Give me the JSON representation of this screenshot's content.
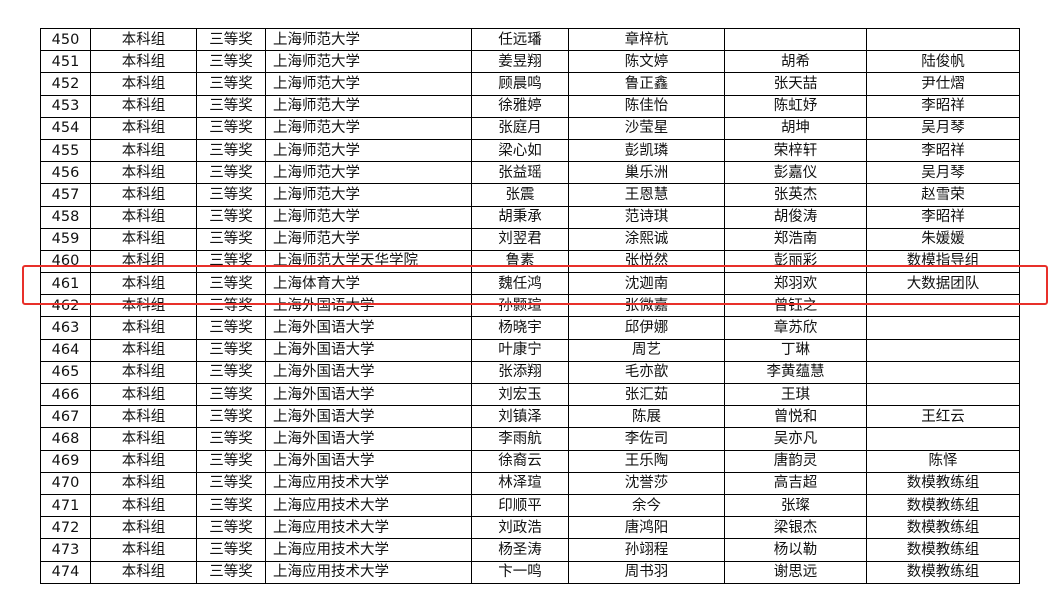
{
  "rows": [
    [
      "450",
      "本科组",
      "三等奖",
      "上海师范大学",
      "任远璠",
      "章梓杭",
      "",
      ""
    ],
    [
      "451",
      "本科组",
      "三等奖",
      "上海师范大学",
      "姜昱翔",
      "陈文婷",
      "胡希",
      "陆俊帆"
    ],
    [
      "452",
      "本科组",
      "三等奖",
      "上海师范大学",
      "顾晨鸣",
      "鲁正鑫",
      "张天喆",
      "尹仕熠"
    ],
    [
      "453",
      "本科组",
      "三等奖",
      "上海师范大学",
      "徐雅婷",
      "陈佳怡",
      "陈虹妤",
      "李昭祥"
    ],
    [
      "454",
      "本科组",
      "三等奖",
      "上海师范大学",
      "张庭月",
      "沙莹星",
      "胡坤",
      "吴月琴"
    ],
    [
      "455",
      "本科组",
      "三等奖",
      "上海师范大学",
      "梁心如",
      "彭凯璘",
      "荣梓轩",
      "李昭祥"
    ],
    [
      "456",
      "本科组",
      "三等奖",
      "上海师范大学",
      "张益瑶",
      "巢乐洲",
      "彭嘉仪",
      "吴月琴"
    ],
    [
      "457",
      "本科组",
      "三等奖",
      "上海师范大学",
      "张震",
      "王恩慧",
      "张英杰",
      "赵雪荣"
    ],
    [
      "458",
      "本科组",
      "三等奖",
      "上海师范大学",
      "胡秉承",
      "范诗琪",
      "胡俊涛",
      "李昭祥"
    ],
    [
      "459",
      "本科组",
      "三等奖",
      "上海师范大学",
      "刘翌君",
      "涂熙诚",
      "郑浩南",
      "朱媛媛"
    ],
    [
      "460",
      "本科组",
      "三等奖",
      "上海师范大学天华学院",
      "鲁素",
      "张悦然",
      "彭丽彩",
      "数模指导组"
    ],
    [
      "461",
      "本科组",
      "三等奖",
      "上海体育大学",
      "魏任鸿",
      "沈迦南",
      "郑羽欢",
      "大数据团队"
    ],
    [
      "462",
      "本科组",
      "三等奖",
      "上海外国语大学",
      "孙颢瑄",
      "张微嘉",
      "曾钰之",
      ""
    ],
    [
      "463",
      "本科组",
      "三等奖",
      "上海外国语大学",
      "杨晓宇",
      "邱伊娜",
      "章苏欣",
      ""
    ],
    [
      "464",
      "本科组",
      "三等奖",
      "上海外国语大学",
      "叶康宁",
      "周艺",
      "丁琳",
      ""
    ],
    [
      "465",
      "本科组",
      "三等奖",
      "上海外国语大学",
      "张添翔",
      "毛亦歆",
      "李黄蕴慧",
      ""
    ],
    [
      "466",
      "本科组",
      "三等奖",
      "上海外国语大学",
      "刘宏玉",
      "张汇茹",
      "王琪",
      ""
    ],
    [
      "467",
      "本科组",
      "三等奖",
      "上海外国语大学",
      "刘镇泽",
      "陈展",
      "曾悦和",
      "王红云"
    ],
    [
      "468",
      "本科组",
      "三等奖",
      "上海外国语大学",
      "李雨航",
      "李佐司",
      "吴亦凡",
      ""
    ],
    [
      "469",
      "本科组",
      "三等奖",
      "上海外国语大学",
      "徐裔云",
      "王乐陶",
      "唐韵灵",
      "陈怿"
    ],
    [
      "470",
      "本科组",
      "三等奖",
      "上海应用技术大学",
      "林泽瑄",
      "沈誉莎",
      "高吉超",
      "数模教练组"
    ],
    [
      "471",
      "本科组",
      "三等奖",
      "上海应用技术大学",
      "印顺平",
      "余今",
      "张璨",
      "数模教练组"
    ],
    [
      "472",
      "本科组",
      "三等奖",
      "上海应用技术大学",
      "刘政浩",
      "唐鸿阳",
      "梁银杰",
      "数模教练组"
    ],
    [
      "473",
      "本科组",
      "三等奖",
      "上海应用技术大学",
      "杨圣涛",
      "孙翊程",
      "杨以勒",
      "数模教练组"
    ],
    [
      "474",
      "本科组",
      "三等奖",
      "上海应用技术大学",
      "卞一鸣",
      "周书羽",
      "谢思远",
      "数模教练组"
    ]
  ],
  "highlight_color": "#e8302a"
}
